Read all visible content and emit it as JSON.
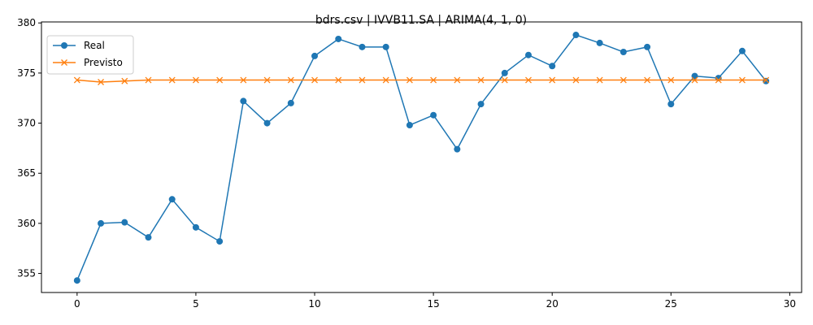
{
  "chart_data": {
    "type": "line",
    "title": "bdrs.csv | IVVB11.SA | ARIMA(4, 1, 0)",
    "xlabel": "",
    "ylabel": "",
    "xlim": [
      -1.5,
      30.5
    ],
    "ylim": [
      353.1,
      380.1
    ],
    "xticks": [
      0,
      5,
      10,
      15,
      20,
      25,
      30
    ],
    "yticks": [
      355,
      360,
      365,
      370,
      375,
      380
    ],
    "grid": false,
    "legend_position": "upper-left",
    "x": [
      0,
      1,
      2,
      3,
      4,
      5,
      6,
      7,
      8,
      9,
      10,
      11,
      12,
      13,
      14,
      15,
      16,
      17,
      18,
      19,
      20,
      21,
      22,
      23,
      24,
      25,
      26,
      27,
      28,
      29
    ],
    "series": [
      {
        "name": "Real",
        "color": "#1f77b4",
        "marker": "circle",
        "values": [
          354.3,
          360.0,
          360.1,
          358.6,
          362.4,
          359.6,
          358.2,
          372.2,
          370.0,
          372.0,
          376.7,
          378.4,
          377.6,
          377.6,
          369.8,
          370.8,
          367.4,
          371.9,
          375.0,
          376.8,
          375.7,
          378.8,
          378.0,
          377.1,
          377.6,
          371.9,
          374.7,
          374.5,
          377.2,
          374.2
        ]
      },
      {
        "name": "Previsto",
        "color": "#ff7f0e",
        "marker": "x",
        "values": [
          374.3,
          374.1,
          374.2,
          374.3,
          374.3,
          374.3,
          374.3,
          374.3,
          374.3,
          374.3,
          374.3,
          374.3,
          374.3,
          374.3,
          374.3,
          374.3,
          374.3,
          374.3,
          374.3,
          374.3,
          374.3,
          374.3,
          374.3,
          374.3,
          374.3,
          374.3,
          374.3,
          374.3,
          374.3,
          374.3
        ]
      }
    ]
  }
}
